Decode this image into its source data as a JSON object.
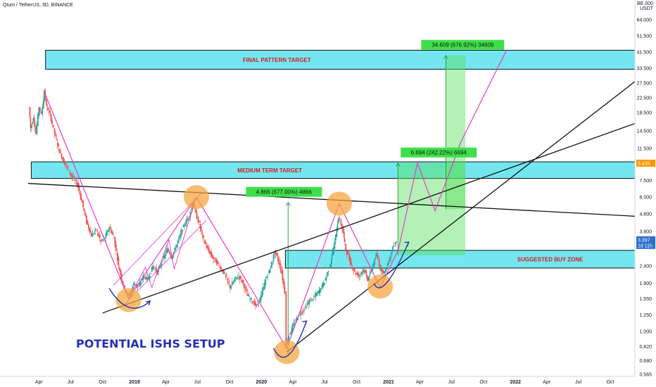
{
  "header": {
    "symbol": "Qtum / TetherUS, 3D, BINANCE",
    "currency_line1": "BE.000",
    "currency_line2": "USDT"
  },
  "colors": {
    "zone_fill": "#74e6f0",
    "zone_border": "#111111",
    "zone_text": "#d81b1b",
    "measure_fill": "#56e05b",
    "pink": "#e63cc9",
    "trend": "#111111",
    "circle": "#f7a33a",
    "curve": "#2431b3",
    "candle_up": "#26a69a",
    "candle_down": "#ef5350",
    "price_tag": "#2f6fd1",
    "target_tag": "#ff9800"
  },
  "chart_data": {
    "type": "candlestick",
    "title": "Qtum / TetherUS, 3D, BINANCE",
    "x_axis": {
      "type": "date",
      "range": [
        "2018-03-01",
        "2022-12-31"
      ],
      "ticks": [
        {
          "label": "Apr",
          "date": "2018-04-01"
        },
        {
          "label": "Jul",
          "date": "2018-07-01"
        },
        {
          "label": "Oct",
          "date": "2018-10-01"
        },
        {
          "label": "2019",
          "date": "2019-01-01"
        },
        {
          "label": "Apr",
          "date": "2019-04-01"
        },
        {
          "label": "Jul",
          "date": "2019-07-01"
        },
        {
          "label": "Oct",
          "date": "2019-10-01"
        },
        {
          "label": "2020",
          "date": "2020-01-01"
        },
        {
          "label": "Apr",
          "date": "2020-04-01"
        },
        {
          "label": "Jul",
          "date": "2020-07-01"
        },
        {
          "label": "Oct",
          "date": "2020-10-01"
        },
        {
          "label": "2021",
          "date": "2021-01-01"
        },
        {
          "label": "Apr",
          "date": "2021-04-01"
        },
        {
          "label": "Jul",
          "date": "2021-07-01"
        },
        {
          "label": "Oct",
          "date": "2021-10-01"
        },
        {
          "label": "2022",
          "date": "2022-01-01"
        },
        {
          "label": "Apr",
          "date": "2022-04-01"
        },
        {
          "label": "Jul",
          "date": "2022-07-01"
        },
        {
          "label": "Oct",
          "date": "2022-10-01"
        }
      ]
    },
    "y_axis": {
      "scale": "log",
      "range": [
        0.565,
        80
      ],
      "ticks": [
        {
          "label": "64.000",
          "value": 64
        },
        {
          "label": "51.500",
          "value": 51.5
        },
        {
          "label": "41.500",
          "value": 41.5
        },
        {
          "label": "33.500",
          "value": 33.5
        },
        {
          "label": "27.500",
          "value": 27.5
        },
        {
          "label": "22.500",
          "value": 22.5
        },
        {
          "label": "18.500",
          "value": 18.5
        },
        {
          "label": "14.500",
          "value": 14.5
        },
        {
          "label": "11.500",
          "value": 11.5
        },
        {
          "label": "7.500",
          "value": 7.5
        },
        {
          "label": "6.000",
          "value": 6
        },
        {
          "label": "4.800",
          "value": 4.8
        },
        {
          "label": "3.800",
          "value": 3.8
        },
        {
          "label": "2.400",
          "value": 2.4
        },
        {
          "label": "1.900",
          "value": 1.9
        },
        {
          "label": "1.550",
          "value": 1.55
        },
        {
          "label": "1.250",
          "value": 1.25
        },
        {
          "label": "1.000",
          "value": 1.0
        },
        {
          "label": "0.820",
          "value": 0.82
        },
        {
          "label": "0.680",
          "value": 0.68
        },
        {
          "label": "0.565",
          "value": 0.565
        }
      ]
    },
    "price_tags": [
      {
        "label": "9.435",
        "value": 9.435,
        "kind": "target"
      },
      {
        "label": "3.397",
        "value": 3.397,
        "kind": "price"
      },
      {
        "label": "1d 11h",
        "value": 3.15,
        "kind": "price"
      }
    ],
    "price_path": [
      {
        "date": "2018-03-05",
        "value": 20
      },
      {
        "date": "2018-03-10",
        "value": 15
      },
      {
        "date": "2018-03-18",
        "value": 17.5
      },
      {
        "date": "2018-03-25",
        "value": 14
      },
      {
        "date": "2018-04-03",
        "value": 20
      },
      {
        "date": "2018-04-10",
        "value": 18
      },
      {
        "date": "2018-04-18",
        "value": 24.5
      },
      {
        "date": "2018-04-25",
        "value": 20
      },
      {
        "date": "2018-05-05",
        "value": 18
      },
      {
        "date": "2018-05-18",
        "value": 14
      },
      {
        "date": "2018-06-01",
        "value": 11
      },
      {
        "date": "2018-06-15",
        "value": 9.5
      },
      {
        "date": "2018-06-28",
        "value": 8.5
      },
      {
        "date": "2018-07-10",
        "value": 7.7
      },
      {
        "date": "2018-07-22",
        "value": 7.2
      },
      {
        "date": "2018-08-05",
        "value": 5.6
      },
      {
        "date": "2018-08-18",
        "value": 4.3
      },
      {
        "date": "2018-09-01",
        "value": 3.6
      },
      {
        "date": "2018-09-15",
        "value": 3.9
      },
      {
        "date": "2018-09-28",
        "value": 3.3
      },
      {
        "date": "2018-10-10",
        "value": 3.5
      },
      {
        "date": "2018-10-22",
        "value": 4.0
      },
      {
        "date": "2018-11-05",
        "value": 3.5
      },
      {
        "date": "2018-11-18",
        "value": 2.4
      },
      {
        "date": "2018-11-30",
        "value": 1.9
      },
      {
        "date": "2018-12-10",
        "value": 1.7
      },
      {
        "date": "2018-12-20",
        "value": 1.6
      },
      {
        "date": "2019-01-01",
        "value": 1.9
      },
      {
        "date": "2019-01-15",
        "value": 1.8
      },
      {
        "date": "2019-01-28",
        "value": 2.1
      },
      {
        "date": "2019-02-10",
        "value": 2.0
      },
      {
        "date": "2019-02-25",
        "value": 2.4
      },
      {
        "date": "2019-03-10",
        "value": 2.2
      },
      {
        "date": "2019-03-25",
        "value": 2.6
      },
      {
        "date": "2019-04-08",
        "value": 3.0
      },
      {
        "date": "2019-04-20",
        "value": 2.7
      },
      {
        "date": "2019-05-05",
        "value": 3.2
      },
      {
        "date": "2019-05-18",
        "value": 3.8
      },
      {
        "date": "2019-05-30",
        "value": 4.3
      },
      {
        "date": "2019-06-10",
        "value": 4.7
      },
      {
        "date": "2019-06-20",
        "value": 5.6
      },
      {
        "date": "2019-06-28",
        "value": 4.8
      },
      {
        "date": "2019-07-08",
        "value": 4.2
      },
      {
        "date": "2019-07-20",
        "value": 3.4
      },
      {
        "date": "2019-08-01",
        "value": 3.0
      },
      {
        "date": "2019-08-15",
        "value": 2.7
      },
      {
        "date": "2019-08-28",
        "value": 2.5
      },
      {
        "date": "2019-09-10",
        "value": 2.3
      },
      {
        "date": "2019-09-22",
        "value": 2.1
      },
      {
        "date": "2019-10-05",
        "value": 1.8
      },
      {
        "date": "2019-10-18",
        "value": 2.0
      },
      {
        "date": "2019-10-30",
        "value": 2.1
      },
      {
        "date": "2019-11-12",
        "value": 1.9
      },
      {
        "date": "2019-11-25",
        "value": 1.6
      },
      {
        "date": "2019-12-08",
        "value": 1.5
      },
      {
        "date": "2019-12-20",
        "value": 1.4
      },
      {
        "date": "2020-01-02",
        "value": 1.6
      },
      {
        "date": "2020-01-15",
        "value": 2.0
      },
      {
        "date": "2020-01-28",
        "value": 2.3
      },
      {
        "date": "2020-02-10",
        "value": 2.9
      },
      {
        "date": "2020-02-20",
        "value": 2.6
      },
      {
        "date": "2020-03-01",
        "value": 2.2
      },
      {
        "date": "2020-03-10",
        "value": 1.7
      },
      {
        "date": "2020-03-14",
        "value": 0.85
      },
      {
        "date": "2020-03-22",
        "value": 0.95
      },
      {
        "date": "2020-04-05",
        "value": 1.1
      },
      {
        "date": "2020-04-20",
        "value": 1.25
      },
      {
        "date": "2020-05-05",
        "value": 1.35
      },
      {
        "date": "2020-05-20",
        "value": 1.5
      },
      {
        "date": "2020-06-05",
        "value": 1.6
      },
      {
        "date": "2020-06-20",
        "value": 1.75
      },
      {
        "date": "2020-07-05",
        "value": 2.0
      },
      {
        "date": "2020-07-20",
        "value": 2.5
      },
      {
        "date": "2020-08-01",
        "value": 3.3
      },
      {
        "date": "2020-08-12",
        "value": 4.6
      },
      {
        "date": "2020-08-22",
        "value": 4.0
      },
      {
        "date": "2020-09-02",
        "value": 3.0
      },
      {
        "date": "2020-09-15",
        "value": 2.5
      },
      {
        "date": "2020-09-28",
        "value": 2.2
      },
      {
        "date": "2020-10-10",
        "value": 2.1
      },
      {
        "date": "2020-10-22",
        "value": 2.3
      },
      {
        "date": "2020-11-05",
        "value": 2.0
      },
      {
        "date": "2020-11-18",
        "value": 2.4
      },
      {
        "date": "2020-11-30",
        "value": 2.8
      },
      {
        "date": "2020-12-10",
        "value": 2.3
      },
      {
        "date": "2020-12-22",
        "value": 2.2
      },
      {
        "date": "2021-01-05",
        "value": 2.6
      },
      {
        "date": "2021-01-15",
        "value": 3.1
      },
      {
        "date": "2021-01-25",
        "value": 3.4
      }
    ],
    "zones": [
      {
        "label": "FINAL PATTERN TARGET",
        "low": 33.0,
        "high": 42.5,
        "start": "2018-04-20",
        "end": "2022-12-31"
      },
      {
        "label": "MEDIUM TERM TARGET",
        "low": 7.7,
        "high": 9.6,
        "start": "2018-03-10",
        "end": "2022-12-31"
      },
      {
        "label": "SUGGESTED BUY ZONE",
        "low": 2.33,
        "high": 2.95,
        "start": "2020-03-10",
        "end": "2022-12-31"
      }
    ],
    "measurements": [
      {
        "label": "4.866 (677.00%) 4866",
        "from_date": "2020-03-18",
        "from_value": 0.72,
        "to_value": 5.59,
        "box": false
      },
      {
        "label": "6.694 (242.22%) 6694",
        "from_date": "2021-01-28",
        "from_value": 2.76,
        "to_value": 9.45,
        "box": true,
        "box_end": "2021-08-10"
      },
      {
        "label": "34.609 (676.92%) 34609",
        "from_date": "2021-06-15",
        "from_value": 5.11,
        "to_value": 39.7,
        "box": true,
        "box_end": "2021-08-10"
      }
    ],
    "trendlines": [
      {
        "name": "upper",
        "points": [
          {
            "date": "2018-03-01",
            "value": 7.2
          },
          {
            "date": "2022-12-31",
            "value": 4.65
          }
        ]
      },
      {
        "name": "lower-rising",
        "points": [
          {
            "date": "2018-10-01",
            "value": 1.28
          },
          {
            "date": "2022-12-31",
            "value": 16.0
          }
        ]
      },
      {
        "name": "lower-steep",
        "points": [
          {
            "date": "2020-03-14",
            "value": 0.76
          },
          {
            "date": "2022-12-31",
            "value": 28.0
          }
        ]
      }
    ],
    "zigzag": [
      {
        "date": "2018-04-18",
        "value": 24
      },
      {
        "date": "2018-12-15",
        "value": 1.55
      },
      {
        "date": "2019-06-28",
        "value": 6.0
      },
      {
        "date": "2020-03-14",
        "value": 0.8
      },
      {
        "date": "2020-08-12",
        "value": 5.5
      },
      {
        "date": "2020-12-08",
        "value": 1.8
      },
      {
        "date": "2021-01-28",
        "value": 2.95
      }
    ],
    "channel_lines": [
      {
        "points": [
          {
            "date": "2018-11-01",
            "value": 1.85
          },
          {
            "date": "2019-07-12",
            "value": 6.3
          }
        ]
      },
      {
        "points": [
          {
            "date": "2018-12-01",
            "value": 1.42
          },
          {
            "date": "2019-07-26",
            "value": 4.4
          }
        ]
      }
    ],
    "minor_zigzag": [
      {
        "date": "2018-12-15",
        "value": 1.55
      },
      {
        "date": "2019-02-01",
        "value": 2.35
      },
      {
        "date": "2019-02-20",
        "value": 1.8
      },
      {
        "date": "2019-04-10",
        "value": 3.4
      },
      {
        "date": "2019-04-25",
        "value": 2.3
      },
      {
        "date": "2019-06-28",
        "value": 6.0
      }
    ],
    "projection": [
      {
        "date": "2021-01-28",
        "value": 2.9
      },
      {
        "date": "2021-03-25",
        "value": 9.45
      },
      {
        "date": "2021-05-15",
        "value": 5.0
      },
      {
        "date": "2021-07-05",
        "value": 9.4
      },
      {
        "date": "2021-07-28",
        "value": 12.5
      },
      {
        "date": "2021-12-05",
        "value": 42.0
      }
    ],
    "circles": [
      {
        "date": "2018-12-15",
        "value": 1.52
      },
      {
        "date": "2019-06-28",
        "value": 6.0
      },
      {
        "date": "2020-03-14",
        "value": 0.76
      },
      {
        "date": "2020-08-12",
        "value": 5.5
      },
      {
        "date": "2020-12-08",
        "value": 1.82
      }
    ],
    "curves": [
      {
        "points": [
          {
            "date": "2018-10-20",
            "value": 1.78
          },
          {
            "date": "2018-12-15",
            "value": 1.38
          },
          {
            "date": "2019-02-15",
            "value": 1.5
          }
        ]
      },
      {
        "points": [
          {
            "date": "2020-02-05",
            "value": 0.8
          },
          {
            "date": "2020-03-15",
            "value": 0.66
          },
          {
            "date": "2020-05-10",
            "value": 1.15
          }
        ]
      },
      {
        "points": [
          {
            "date": "2020-11-20",
            "value": 1.9
          },
          {
            "date": "2020-12-15",
            "value": 1.75
          },
          {
            "date": "2021-02-28",
            "value": 3.3
          }
        ]
      }
    ],
    "annotation": "POTENTIAL ISHS SETUP"
  }
}
